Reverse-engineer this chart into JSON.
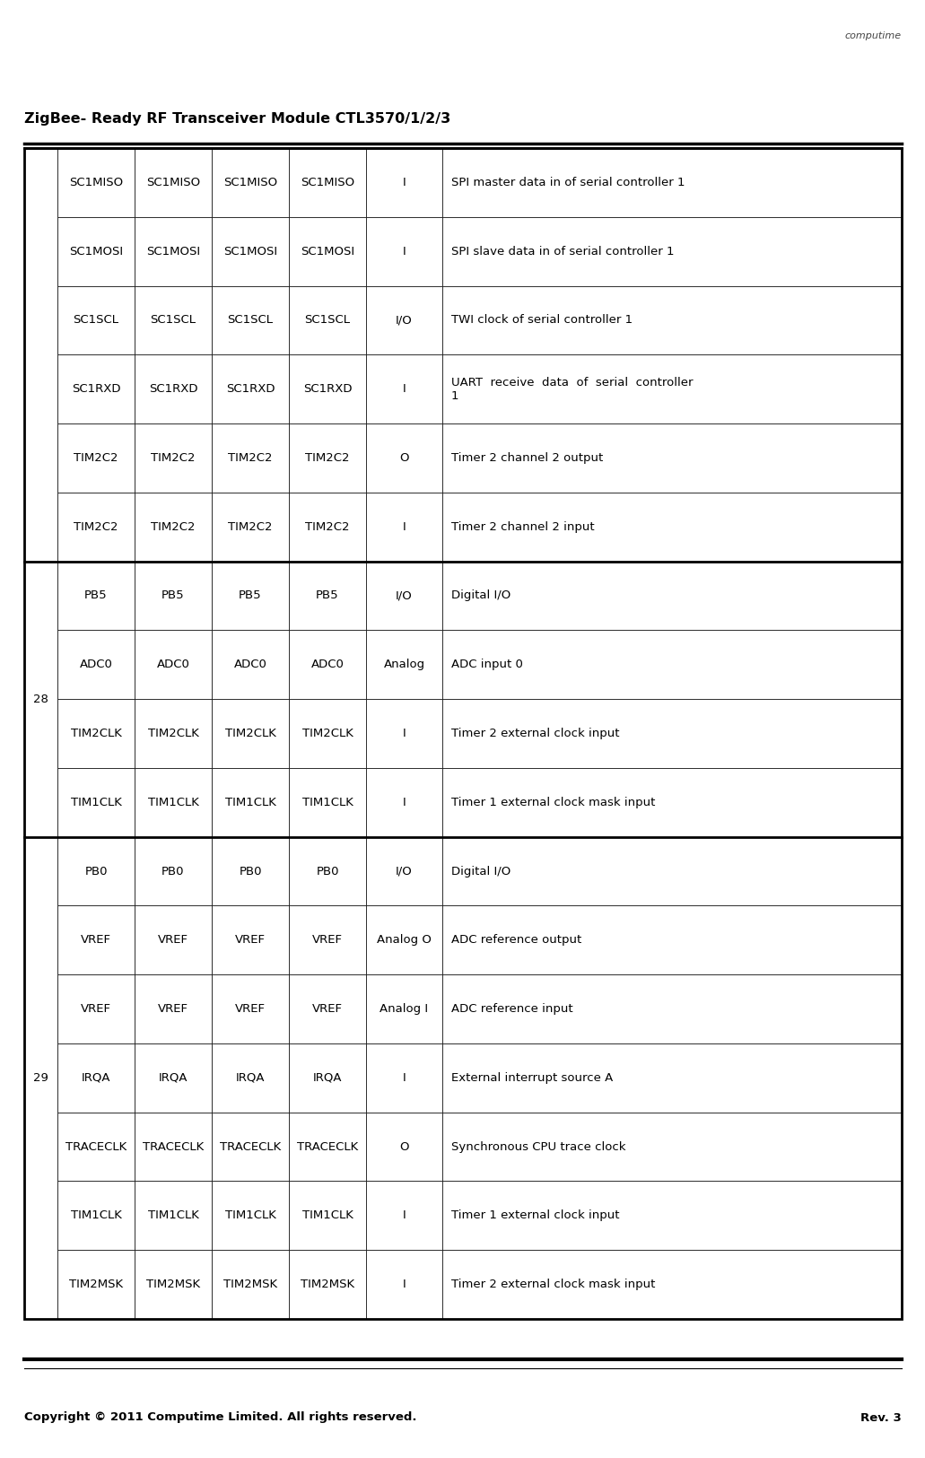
{
  "title": "ZigBee- Ready RF Transceiver Module CTL3570/1/2/3",
  "footer_left": "Copyright © 2011 Computime Limited. All rights reserved.",
  "footer_right": "Rev. 3",
  "rows": [
    {
      "group": "",
      "c1": "SC1MISO",
      "c2": "SC1MISO",
      "c3": "SC1MISO",
      "c4": "SC1MISO",
      "c5": "I",
      "c6": "SPI master data in of serial controller 1"
    },
    {
      "group": "",
      "c1": "SC1MOSI",
      "c2": "SC1MOSI",
      "c3": "SC1MOSI",
      "c4": "SC1MOSI",
      "c5": "I",
      "c6": "SPI slave data in of serial controller 1"
    },
    {
      "group": "",
      "c1": "SC1SCL",
      "c2": "SC1SCL",
      "c3": "SC1SCL",
      "c4": "SC1SCL",
      "c5": "I/O",
      "c6": "TWI clock of serial controller 1"
    },
    {
      "group": "",
      "c1": "SC1RXD",
      "c2": "SC1RXD",
      "c3": "SC1RXD",
      "c4": "SC1RXD",
      "c5": "I",
      "c6": "UART  receive  data  of  serial  controller\n1"
    },
    {
      "group": "",
      "c1": "TIM2C2",
      "c2": "TIM2C2",
      "c3": "TIM2C2",
      "c4": "TIM2C2",
      "c5": "O",
      "c6": "Timer 2 channel 2 output"
    },
    {
      "group": "",
      "c1": "TIM2C2",
      "c2": "TIM2C2",
      "c3": "TIM2C2",
      "c4": "TIM2C2",
      "c5": "I",
      "c6": "Timer 2 channel 2 input"
    },
    {
      "group": "28",
      "c1": "PB5",
      "c2": "PB5",
      "c3": "PB5",
      "c4": "PB5",
      "c5": "I/O",
      "c6": "Digital I/O"
    },
    {
      "group": "28",
      "c1": "ADC0",
      "c2": "ADC0",
      "c3": "ADC0",
      "c4": "ADC0",
      "c5": "Analog",
      "c6": "ADC input 0"
    },
    {
      "group": "28",
      "c1": "TIM2CLK",
      "c2": "TIM2CLK",
      "c3": "TIM2CLK",
      "c4": "TIM2CLK",
      "c5": "I",
      "c6": "Timer 2 external clock input"
    },
    {
      "group": "28",
      "c1": "TIM1CLK",
      "c2": "TIM1CLK",
      "c3": "TIM1CLK",
      "c4": "TIM1CLK",
      "c5": "I",
      "c6": "Timer 1 external clock mask input"
    },
    {
      "group": "29",
      "c1": "PB0",
      "c2": "PB0",
      "c3": "PB0",
      "c4": "PB0",
      "c5": "I/O",
      "c6": "Digital I/O"
    },
    {
      "group": "29",
      "c1": "VREF",
      "c2": "VREF",
      "c3": "VREF",
      "c4": "VREF",
      "c5": "Analog O",
      "c6": "ADC reference output"
    },
    {
      "group": "29",
      "c1": "VREF",
      "c2": "VREF",
      "c3": "VREF",
      "c4": "VREF",
      "c5": "Analog I",
      "c6": "ADC reference input"
    },
    {
      "group": "29",
      "c1": "IRQA",
      "c2": "IRQA",
      "c3": "IRQA",
      "c4": "IRQA",
      "c5": "I",
      "c6": "External interrupt source A"
    },
    {
      "group": "29",
      "c1": "TRACECLK",
      "c2": "TRACECLK",
      "c3": "TRACECLK",
      "c4": "TRACECLK",
      "c5": "O",
      "c6": "Synchronous CPU trace clock"
    },
    {
      "group": "29",
      "c1": "TIM1CLK",
      "c2": "TIM1CLK",
      "c3": "TIM1CLK",
      "c4": "TIM1CLK",
      "c5": "I",
      "c6": "Timer 1 external clock input"
    },
    {
      "group": "29",
      "c1": "TIM2MSK",
      "c2": "TIM2MSK",
      "c3": "TIM2MSK",
      "c4": "TIM2MSK",
      "c5": "I",
      "c6": "Timer 2 external clock mask input"
    }
  ],
  "group_spans": [
    {
      "label": "",
      "start": 0,
      "end": 5
    },
    {
      "label": "28",
      "start": 6,
      "end": 9
    },
    {
      "label": "29",
      "start": 10,
      "end": 16
    }
  ],
  "thick_borders_before": [
    0,
    6,
    10
  ],
  "background_color": "#ffffff",
  "cell_bg": "#ffffff",
  "border_color": "#000000",
  "text_color": "#000000",
  "font_size": 9.5,
  "title_font_size": 11.5,
  "footer_font_size": 9.5
}
